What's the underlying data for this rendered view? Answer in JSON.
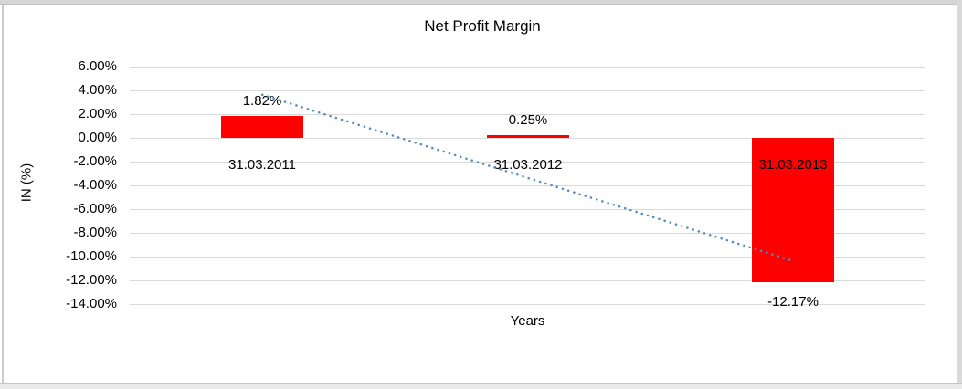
{
  "chart_data": {
    "type": "bar",
    "title": "Net Profit Margin",
    "categories": [
      "31.03.2011",
      "31.03.2012",
      "31.03.2013"
    ],
    "values": [
      1.82,
      0.25,
      -12.17
    ],
    "data_labels": [
      "1.82%",
      "0.25%",
      "-12.17%"
    ],
    "xlabel": "Years",
    "ylabel": "IN (%)",
    "ylim": [
      -14,
      6
    ],
    "y_ticks": [
      6,
      4,
      2,
      0,
      -2,
      -4,
      -6,
      -8,
      -10,
      -12,
      -14
    ],
    "y_tick_labels": [
      "6.00%",
      "4.00%",
      "2.00%",
      "0.00%",
      "-2.00%",
      "-4.00%",
      "-6.00%",
      "-8.00%",
      "-10.00%",
      "-12.00%",
      "-14.00%"
    ],
    "grid": true,
    "legend": "none",
    "bar_color": "#ff0000",
    "gridline_color": "#d9d9d9",
    "trendline": {
      "type": "linear",
      "style": "dotted",
      "color": "#4e8ac9"
    }
  }
}
